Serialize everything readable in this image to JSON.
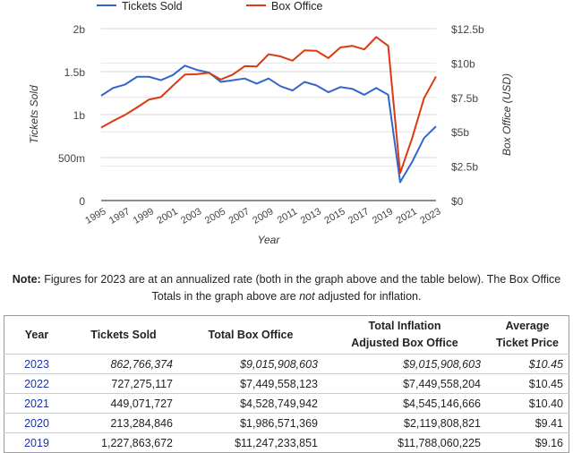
{
  "chart_data": {
    "type": "line",
    "x": [
      1995,
      1996,
      1997,
      1998,
      1999,
      2000,
      2001,
      2002,
      2003,
      2004,
      2005,
      2006,
      2007,
      2008,
      2009,
      2010,
      2011,
      2012,
      2013,
      2014,
      2015,
      2016,
      2017,
      2018,
      2019,
      2020,
      2021,
      2022,
      2023
    ],
    "x_tick_labels": [
      "1995",
      "1997",
      "1999",
      "2001",
      "2003",
      "2005",
      "2007",
      "2009",
      "2011",
      "2013",
      "2015",
      "2017",
      "2019",
      "2021",
      "2023"
    ],
    "xlabel": "Year",
    "series": [
      {
        "name": "Tickets Sold",
        "axis": "left",
        "color": "#3366cc",
        "values": [
          1.22,
          1.31,
          1.35,
          1.44,
          1.44,
          1.4,
          1.46,
          1.57,
          1.52,
          1.49,
          1.38,
          1.4,
          1.42,
          1.36,
          1.42,
          1.33,
          1.28,
          1.38,
          1.34,
          1.26,
          1.32,
          1.3,
          1.23,
          1.31,
          1.23,
          0.213,
          0.449,
          0.727,
          0.863
        ]
      },
      {
        "name": "Box Office",
        "axis": "right",
        "color": "#dc3912",
        "values": [
          5.31,
          5.79,
          6.23,
          6.77,
          7.34,
          7.53,
          8.36,
          9.16,
          9.19,
          9.29,
          8.8,
          9.16,
          9.77,
          9.75,
          10.64,
          10.48,
          10.17,
          10.92,
          10.89,
          10.36,
          11.13,
          11.25,
          10.99,
          11.89,
          11.25,
          1.99,
          4.53,
          7.45,
          9.02
        ]
      }
    ],
    "left_axis": {
      "label": "Tickets Sold",
      "unit": "billions",
      "range": [
        0,
        2
      ],
      "ticks": [
        0,
        0.5,
        1,
        1.5,
        2
      ],
      "tick_labels": [
        "0",
        "500m",
        "1b",
        "1.5b",
        "2b"
      ]
    },
    "right_axis": {
      "label": "Box Office (USD)",
      "unit": "billions USD",
      "range": [
        0,
        12.5
      ],
      "ticks": [
        0,
        2.5,
        5,
        7.5,
        10,
        12.5
      ],
      "tick_labels": [
        "$0",
        "$2.5b",
        "$5b",
        "$7.5b",
        "$10b",
        "$12.5b"
      ]
    },
    "grid": true,
    "legend": "top"
  },
  "note": {
    "bold": "Note:",
    "text1": " Figures for 2023 are at an annualized rate (both in the graph above and the table below). The Box Office Totals in the graph above are ",
    "em": "not",
    "text2": " adjusted for inflation."
  },
  "table": {
    "headers": [
      "Year",
      "Tickets Sold",
      "Total Box Office",
      "Total Inflation",
      "Adjusted Box Office",
      "Average",
      "Ticket Price"
    ],
    "rows": [
      [
        "2023",
        "862,766,374",
        "$9,015,908,603",
        "$9,015,908,603",
        "$10.45"
      ],
      [
        "2022",
        "727,275,117",
        "$7,449,558,123",
        "$7,449,558,204",
        "$10.45"
      ],
      [
        "2021",
        "449,071,727",
        "$4,528,749,942",
        "$4,545,146,666",
        "$10.40"
      ],
      [
        "2020",
        "213,284,846",
        "$1,986,571,369",
        "$2,119,808,821",
        "$9.41"
      ],
      [
        "2019",
        "1,227,863,672",
        "$11,247,233,851",
        "$11,788,060,225",
        "$9.16"
      ]
    ]
  }
}
